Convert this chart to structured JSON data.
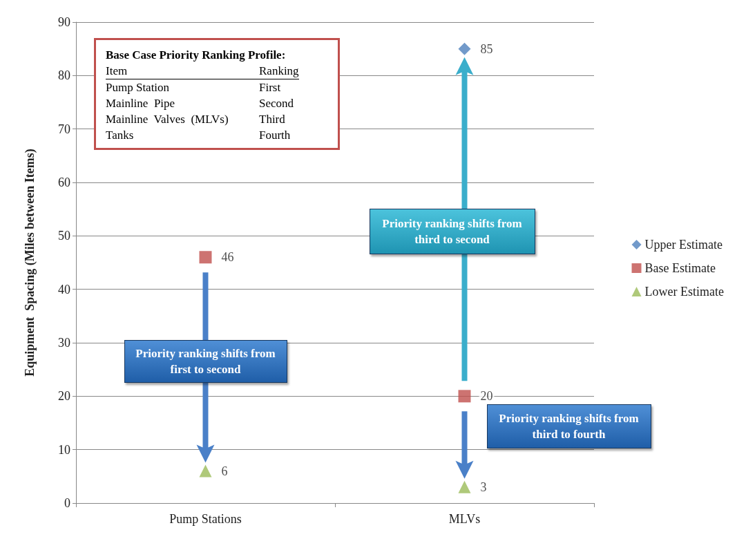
{
  "chart_data": {
    "type": "scatter",
    "ylabel": "Equipment  Spacing (Miles between Items)",
    "categories": [
      "Pump Stations",
      "MLVs"
    ],
    "series": [
      {
        "name": "Upper Estimate",
        "color": "#4f81bd",
        "marker": "diamond",
        "values": [
          null,
          85
        ]
      },
      {
        "name": "Base Estimate",
        "color": "#c0504d",
        "marker": "square",
        "values": [
          46,
          20
        ]
      },
      {
        "name": "Lower Estimate",
        "color": "#9bbb59",
        "marker": "triangle",
        "values": [
          6,
          3
        ]
      }
    ],
    "ylim": [
      0,
      90
    ],
    "yticks": [
      0,
      10,
      20,
      30,
      40,
      50,
      60,
      70,
      80,
      90
    ],
    "grid": "y",
    "legend": "right",
    "data_labels": true,
    "annotations": [
      "Base Case Priority Ranking Profile:",
      "Item",
      "Ranking",
      "Pump Station",
      "First",
      "Mainline  Pipe",
      "Second",
      "Mainline  Valves  (MLVs)",
      "Third",
      "Tanks",
      "Fourth",
      "Priority ranking shifts from first to second",
      "Priority ranking shifts from third to second",
      "Priority ranking shifts from third to fourth"
    ]
  }
}
